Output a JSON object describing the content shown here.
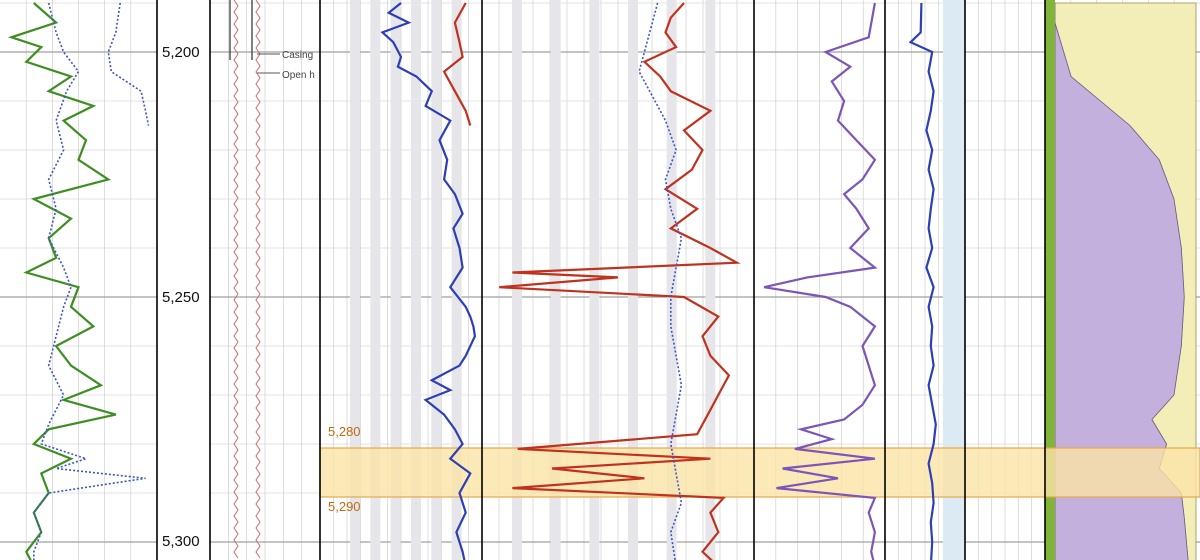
{
  "chart_data": {
    "type": "line",
    "title": "",
    "depth_axis": {
      "range": [
        5190,
        5305
      ],
      "tick_labels": [
        "5,200",
        "5,250",
        "5,300"
      ],
      "tick_values": [
        5200,
        5250,
        5300
      ],
      "minor_step": 10
    },
    "zone": {
      "top": 5280,
      "bottom": 5290,
      "top_label": "5,280",
      "bottom_label": "5,290",
      "color": "#fbe3a6",
      "edge_color": "#e8a64a"
    },
    "completion_legend": [
      "Casing",
      "Open h"
    ],
    "colors": {
      "green": "#3f8e22",
      "blue": "#2c3fb4",
      "dotted_blue": "#3a55c8",
      "red": "#c0321d",
      "orange": "#d9671f",
      "purple": "#7b55b8",
      "lith_sand": "#f3edb8",
      "lith_lime": "#c3b0dd",
      "lith_shale": "#a58a8a",
      "lith_green": "#82b43a",
      "grid": "#c8c8c8",
      "track_border": "#000000"
    },
    "series": [
      {
        "track": 1,
        "kind": "solid",
        "color_key": "green",
        "depth": [
          5190,
          5194,
          5197,
          5199,
          5202,
          5205,
          5208,
          5211,
          5214,
          5218,
          5222,
          5226,
          5230,
          5234,
          5238,
          5242,
          5245,
          5248,
          5252,
          5256,
          5260,
          5264,
          5268,
          5271,
          5274,
          5277,
          5280,
          5283,
          5286,
          5290,
          5294,
          5298,
          5302,
          5305
        ],
        "value": [
          0.2,
          0.35,
          0.05,
          0.25,
          0.15,
          0.45,
          0.3,
          0.6,
          0.4,
          0.55,
          0.5,
          0.7,
          0.2,
          0.45,
          0.3,
          0.35,
          0.15,
          0.5,
          0.45,
          0.6,
          0.35,
          0.45,
          0.65,
          0.4,
          0.75,
          0.3,
          0.2,
          0.45,
          0.25,
          0.3,
          0.2,
          0.25,
          0.15,
          0.2
        ]
      },
      {
        "track": 1,
        "kind": "dotted",
        "color_key": "dotted_blue",
        "depth": [
          5190,
          5196,
          5200,
          5204,
          5208,
          5214,
          5220,
          5226,
          5232,
          5238,
          5244,
          5248,
          5252,
          5258,
          5264,
          5270,
          5276,
          5280,
          5283,
          5285,
          5287,
          5290,
          5294,
          5298,
          5302,
          5305
        ],
        "value": [
          0.3,
          0.35,
          0.4,
          0.5,
          0.42,
          0.35,
          0.4,
          0.3,
          0.35,
          0.3,
          0.4,
          0.45,
          0.4,
          0.35,
          0.3,
          0.4,
          0.3,
          0.25,
          0.55,
          0.35,
          0.95,
          0.3,
          0.2,
          0.25,
          0.2,
          0.2
        ]
      },
      {
        "track": 1,
        "kind": "dotted",
        "color_key": "dotted_blue",
        "depth": [
          5190,
          5196,
          5200,
          5204,
          5208,
          5212,
          5215
        ],
        "value": [
          0.78,
          0.75,
          0.7,
          0.72,
          0.92,
          0.95,
          0.97
        ]
      },
      {
        "track": 3,
        "kind": "solid",
        "color_key": "blue",
        "depth": [
          5190,
          5192,
          5194,
          5196,
          5198,
          5201,
          5203,
          5205,
          5208,
          5211,
          5214,
          5218,
          5222,
          5226,
          5229,
          5233,
          5236,
          5240,
          5244,
          5248,
          5252,
          5254,
          5256,
          5258,
          5262,
          5264,
          5267,
          5269,
          5271,
          5274,
          5277,
          5280,
          5283,
          5286,
          5290,
          5294,
          5298,
          5302,
          5305
        ],
        "value": [
          0.5,
          0.42,
          0.55,
          0.38,
          0.45,
          0.5,
          0.48,
          0.6,
          0.7,
          0.66,
          0.82,
          0.75,
          0.8,
          0.78,
          0.85,
          0.9,
          0.84,
          0.88,
          0.9,
          0.82,
          0.92,
          0.95,
          0.97,
          0.98,
          0.92,
          0.88,
          0.7,
          0.82,
          0.66,
          0.78,
          0.85,
          0.9,
          0.82,
          0.95,
          0.88,
          0.92,
          0.86,
          0.9,
          0.92
        ]
      },
      {
        "track": 3,
        "kind": "solid",
        "color_key": "red",
        "depth": [
          5190,
          5194,
          5198,
          5201,
          5204,
          5208,
          5212,
          5215
        ],
        "value": [
          0.92,
          0.85,
          0.88,
          0.9,
          0.78,
          0.85,
          0.92,
          0.95
        ]
      },
      {
        "track": 4,
        "kind": "solid",
        "color_key": "red",
        "depth": [
          5190,
          5193,
          5196,
          5199,
          5202,
          5205,
          5208,
          5212,
          5216,
          5220,
          5224,
          5228,
          5232,
          5236,
          5240,
          5243,
          5245,
          5246,
          5248,
          5250,
          5254,
          5258,
          5262,
          5266,
          5270,
          5274,
          5278,
          5281,
          5283,
          5285,
          5287,
          5289,
          5291,
          5294,
          5298,
          5302,
          5305
        ],
        "value": [
          0.75,
          0.7,
          0.68,
          0.72,
          0.6,
          0.66,
          0.7,
          0.85,
          0.75,
          0.82,
          0.78,
          0.68,
          0.8,
          0.7,
          0.85,
          0.95,
          0.1,
          0.5,
          0.05,
          0.75,
          0.88,
          0.82,
          0.85,
          0.92,
          0.88,
          0.84,
          0.8,
          0.12,
          0.85,
          0.25,
          0.6,
          0.1,
          0.9,
          0.85,
          0.88,
          0.82,
          0.88
        ]
      },
      {
        "track": 4,
        "kind": "dotted",
        "color_key": "dotted_blue",
        "depth": [
          5190,
          5196,
          5200,
          5204,
          5208,
          5214,
          5220,
          5226,
          5232,
          5238,
          5244,
          5250,
          5256,
          5262,
          5268,
          5274,
          5280,
          5286,
          5292,
          5298,
          5305
        ],
        "value": [
          0.65,
          0.62,
          0.6,
          0.58,
          0.62,
          0.68,
          0.72,
          0.68,
          0.7,
          0.74,
          0.72,
          0.7,
          0.7,
          0.72,
          0.74,
          0.72,
          0.7,
          0.72,
          0.74,
          0.7,
          0.72
        ]
      },
      {
        "track": 5,
        "kind": "solid",
        "color_key": "purple",
        "depth": [
          5190,
          5197,
          5200,
          5203,
          5206,
          5210,
          5214,
          5218,
          5222,
          5226,
          5229,
          5232,
          5236,
          5240,
          5244,
          5246,
          5248,
          5250,
          5252,
          5256,
          5260,
          5264,
          5268,
          5272,
          5275,
          5277,
          5279,
          5281,
          5283,
          5285,
          5287,
          5289,
          5291,
          5294,
          5298,
          5302,
          5305
        ],
        "value": [
          0.95,
          0.9,
          0.55,
          0.75,
          0.6,
          0.7,
          0.65,
          0.8,
          0.95,
          0.85,
          0.7,
          0.8,
          0.9,
          0.75,
          0.95,
          0.4,
          0.05,
          0.55,
          0.75,
          0.95,
          0.85,
          0.9,
          0.95,
          0.85,
          0.7,
          0.35,
          0.6,
          0.3,
          0.95,
          0.2,
          0.65,
          0.15,
          0.95,
          0.9,
          0.95,
          0.92,
          0.95
        ]
      },
      {
        "track": 6,
        "kind": "solid",
        "color_key": "blue",
        "depth": [
          5190,
          5196,
          5198,
          5200,
          5204,
          5208,
          5212,
          5216,
          5220,
          5224,
          5228,
          5232,
          5236,
          5240,
          5244,
          5248,
          5252,
          5256,
          5260,
          5264,
          5268,
          5272,
          5276,
          5280,
          5284,
          5288,
          5292,
          5296,
          5300,
          5305
        ],
        "value": [
          0.45,
          0.44,
          0.3,
          0.6,
          0.55,
          0.62,
          0.58,
          0.52,
          0.6,
          0.55,
          0.62,
          0.58,
          0.55,
          0.6,
          0.52,
          0.62,
          0.55,
          0.6,
          0.58,
          0.62,
          0.55,
          0.6,
          0.65,
          0.62,
          0.55,
          0.6,
          0.62,
          0.58,
          0.6,
          0.58
        ]
      },
      {
        "track": 8,
        "kind": "lithology",
        "depth": [
          5190,
          5205,
          5210,
          5215,
          5222,
          5230,
          5240,
          5250,
          5260,
          5270,
          5275,
          5280,
          5285,
          5290,
          5295,
          5305
        ],
        "sand_top": [
          1,
          1,
          1,
          1,
          1,
          1,
          1,
          1,
          1,
          1,
          1,
          1,
          1,
          1,
          1,
          1
        ],
        "sand_bottom": [
          0,
          0.15,
          0.35,
          0.55,
          0.75,
          0.85,
          0.9,
          0.92,
          0.9,
          0.85,
          0.7,
          0.8,
          0.75,
          0.9,
          0.92,
          0.95
        ]
      }
    ]
  }
}
